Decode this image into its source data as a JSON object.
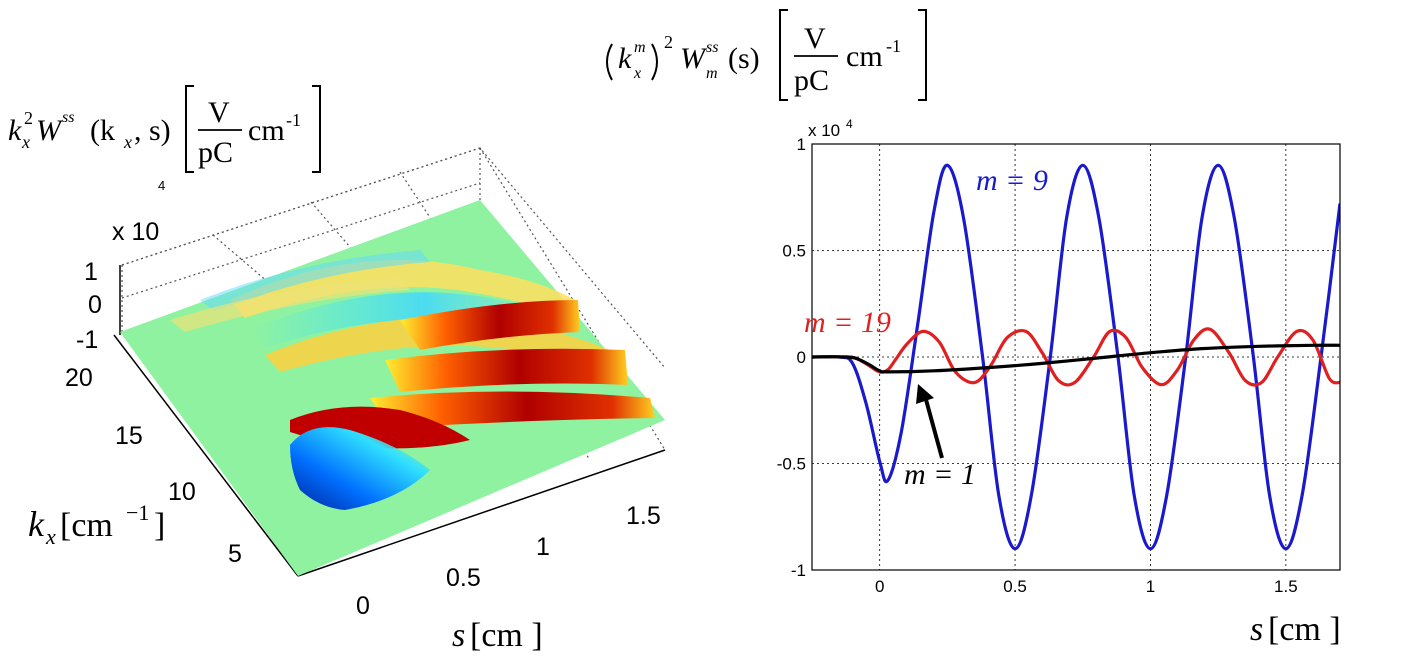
{
  "left_title": {
    "k": "k",
    "x_sub": "x",
    "two_sup": "2",
    "W": "W",
    "ss_sup": "ss",
    "args": "(k",
    "args_sub": "x",
    "args_tail": ", s)",
    "frac_num": "V",
    "frac_den": "pC",
    "unit": "cm",
    "unit_exp": "-1"
  },
  "right_title": {
    "k": "k",
    "m_sup": "m",
    "x_sub": "x",
    "two_sup": "2",
    "W": "W",
    "ss_sup": "ss",
    "m_sub": "m",
    "arg": "(s)",
    "frac_num": "V",
    "frac_den": "pC",
    "unit": "cm",
    "unit_exp": "-1"
  },
  "surface_plot": {
    "z_multiplier": "x 10",
    "z_multiplier_exp": "4",
    "z_ticks": [
      "1",
      "0",
      "-1"
    ],
    "kx_ticks": [
      "20",
      "15",
      "10",
      "5"
    ],
    "s_ticks": [
      "0",
      "0.5",
      "1",
      "1.5"
    ],
    "kx_label": "k",
    "kx_label_sub": "x",
    "kx_label_unit": "[cm",
    "kx_label_exp": "−1",
    "kx_label_close": "]",
    "s_label": "s",
    "s_label_unit": "[cm ]"
  },
  "line_plot": {
    "multiplier": "x 10",
    "multiplier_exp": "4",
    "s_label": "s",
    "s_label_unit": "[cm ]",
    "annotation_m1": "m = 1",
    "label_m9": "m = 9",
    "label_m19": "m = 19"
  },
  "chart_data": [
    {
      "type": "surface",
      "title": "k_x^2 W^ss(k_x, s) [V/pC cm^-1]",
      "xlabel": "s [cm]",
      "ylabel": "k_x [cm^-1]",
      "zlabel": "x 10^4",
      "x_ticks": [
        0,
        0.5,
        1,
        1.5
      ],
      "y_ticks": [
        5,
        10,
        15,
        20
      ],
      "z_ticks": [
        -1,
        0,
        1
      ],
      "xlim": [
        -0.3,
        1.7
      ],
      "ylim": [
        0,
        21
      ],
      "zlim": [
        -1,
        1
      ],
      "colormap": "jet"
    },
    {
      "type": "line",
      "title": "(k_x^m)^2 W_m^ss(s) [V/pC cm^-1]",
      "xlabel": "s [cm]",
      "ylabel": "",
      "multiplier": "x 10^4",
      "xlim": [
        -0.25,
        1.7
      ],
      "ylim": [
        -10000,
        10000
      ],
      "x_ticks": [
        0,
        0.5,
        1,
        1.5
      ],
      "y_ticks": [
        -10000,
        -5000,
        0,
        5000,
        10000
      ],
      "y_tick_labels": [
        "-1",
        "-0.5",
        "0",
        "0.5",
        "1"
      ],
      "grid": true,
      "series": [
        {
          "name": "m = 9",
          "color": "#1a1acc",
          "x": [
            -0.25,
            -0.15,
            -0.1,
            -0.05,
            0.0,
            0.03,
            0.08,
            0.14,
            0.2,
            0.25,
            0.31,
            0.38,
            0.44,
            0.5,
            0.56,
            0.63,
            0.69,
            0.75,
            0.81,
            0.88,
            0.94,
            1.0,
            1.06,
            1.13,
            1.19,
            1.25,
            1.31,
            1.38,
            1.44,
            1.5,
            1.56,
            1.63,
            1.7
          ],
          "y": [
            0,
            0,
            -300,
            -2200,
            -4900,
            -5800,
            -3500,
            1500,
            6800,
            9000,
            6500,
            0,
            -6500,
            -9000,
            -6500,
            0,
            6500,
            9000,
            6500,
            0,
            -6500,
            -9000,
            -6500,
            0,
            6500,
            9000,
            6500,
            0,
            -6500,
            -9000,
            -6500,
            0,
            7200
          ]
        },
        {
          "name": "m = 19",
          "color": "#e02020",
          "x": [
            -0.25,
            -0.12,
            -0.08,
            -0.04,
            0.0,
            0.03,
            0.06,
            0.1,
            0.16,
            0.22,
            0.28,
            0.35,
            0.41,
            0.47,
            0.54,
            0.6,
            0.66,
            0.72,
            0.79,
            0.85,
            0.91,
            0.97,
            1.04,
            1.1,
            1.16,
            1.22,
            1.29,
            1.35,
            1.41,
            1.47,
            1.54,
            1.6,
            1.66,
            1.7
          ],
          "y": [
            0,
            0,
            -100,
            -400,
            -700,
            -600,
            -100,
            600,
            1200,
            700,
            -700,
            -1200,
            -400,
            900,
            1200,
            200,
            -1100,
            -1200,
            0,
            1200,
            900,
            -500,
            -1300,
            -600,
            800,
            1300,
            200,
            -1100,
            -1200,
            0,
            1200,
            800,
            -1000,
            -1200
          ]
        },
        {
          "name": "m = 1",
          "color": "#000000",
          "x": [
            -0.25,
            -0.12,
            -0.08,
            -0.04,
            0.0,
            0.03,
            0.2,
            0.4,
            0.6,
            0.8,
            1.0,
            1.2,
            1.4,
            1.6,
            1.7
          ],
          "y": [
            0,
            0,
            -100,
            -350,
            -650,
            -700,
            -650,
            -500,
            -300,
            -50,
            200,
            400,
            500,
            550,
            550
          ]
        }
      ]
    }
  ]
}
